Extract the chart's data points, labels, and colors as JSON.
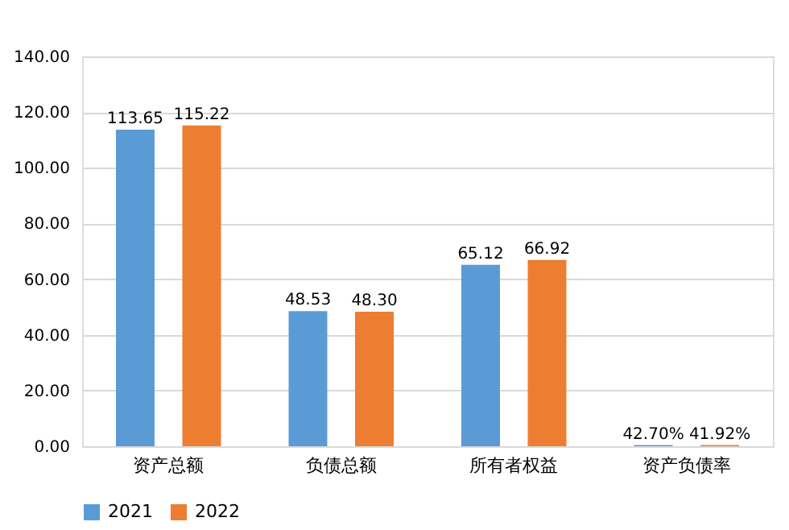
{
  "chart_data": {
    "type": "bar",
    "categories": [
      "资产总额",
      "负债总额",
      "所有者权益",
      "资产负债率"
    ],
    "series": [
      {
        "name": "2021",
        "color": "#5b9bd5",
        "values": [
          113.65,
          48.53,
          65.12,
          0.427
        ],
        "value_labels": [
          "113.65",
          "48.53",
          "65.12",
          "42.70%"
        ]
      },
      {
        "name": "2022",
        "color": "#ed7d31",
        "values": [
          115.22,
          48.3,
          66.92,
          0.4192
        ],
        "value_labels": [
          "115.22",
          "48.30",
          "66.92",
          "41.92%"
        ]
      }
    ],
    "ylim": [
      0,
      140
    ],
    "yticks": [
      {
        "value": 0,
        "label": "0.00"
      },
      {
        "value": 20,
        "label": "20.00"
      },
      {
        "value": 40,
        "label": "40.00"
      },
      {
        "value": 60,
        "label": "60.00"
      },
      {
        "value": 80,
        "label": "80.00"
      },
      {
        "value": 100,
        "label": "100.00"
      },
      {
        "value": 120,
        "label": "120.00"
      },
      {
        "value": 140,
        "label": "140.00"
      }
    ],
    "grid": "y",
    "legend": "bottom"
  }
}
